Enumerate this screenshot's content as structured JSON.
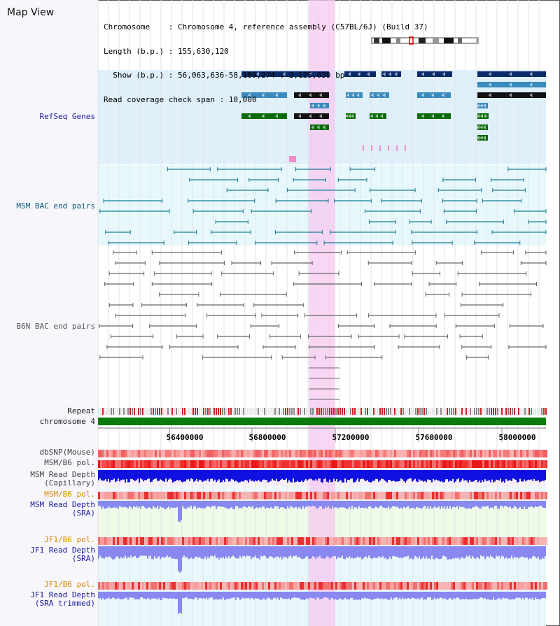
{
  "view_title": "Map View",
  "info_lines": [
    "Chromosome    : Chromosome 4, reference assembly (C57BL/6J) (Build 37)",
    "Length (b.p.) : 155,630,120",
    "  Show (b.p.) : 56,063,636-58,189,274 : 2,125,639 bp",
    "Read coverage check span : 10,000"
  ],
  "track_labels": {
    "refseq": "RefSeq Genes",
    "msm_bac": "MSM BAC end pairs",
    "b6n_bac": "B6N BAC end pairs",
    "repeat": "Repeat",
    "chromosome": "chromosome 4",
    "dbsnp": "dbSNP(Mouse)",
    "msm_b6_pol_1": "MSM/B6 pol.",
    "msm_read_depth_cap": "MSM Read Depth\n(Capillary)",
    "msm_b6_pol_2": "MSM/B6 pol.",
    "msm_read_depth_sra": "MSM Read Depth\n(SRA)",
    "jf1_b6_pol_1": "JF1/B6 pol.",
    "jf1_read_depth_sra": "JF1 Read Depth\n(SRA)",
    "jf1_b6_pol_2": "JF1/B6 pol.",
    "jf1_read_depth_trimmed": "JF1 Read Depth\n(SRA trimmed)"
  },
  "axis_ticks": [
    "56400000",
    "56800000",
    "57200000",
    "57600000",
    "58000000"
  ],
  "colors": {
    "refseq_bg": "#dff0fa",
    "msm_bg": "#e6f8fb",
    "highlight": "#f7c8f0",
    "label_blue": "#1a1aa0",
    "label_teal": "#0a5a7a",
    "label_orange": "#e08a00",
    "label_gray": "#333333",
    "chrom_green": "#0a7a0a",
    "read_depth_blue": "#1010e0",
    "sra_blue": "#8888f0"
  }
}
